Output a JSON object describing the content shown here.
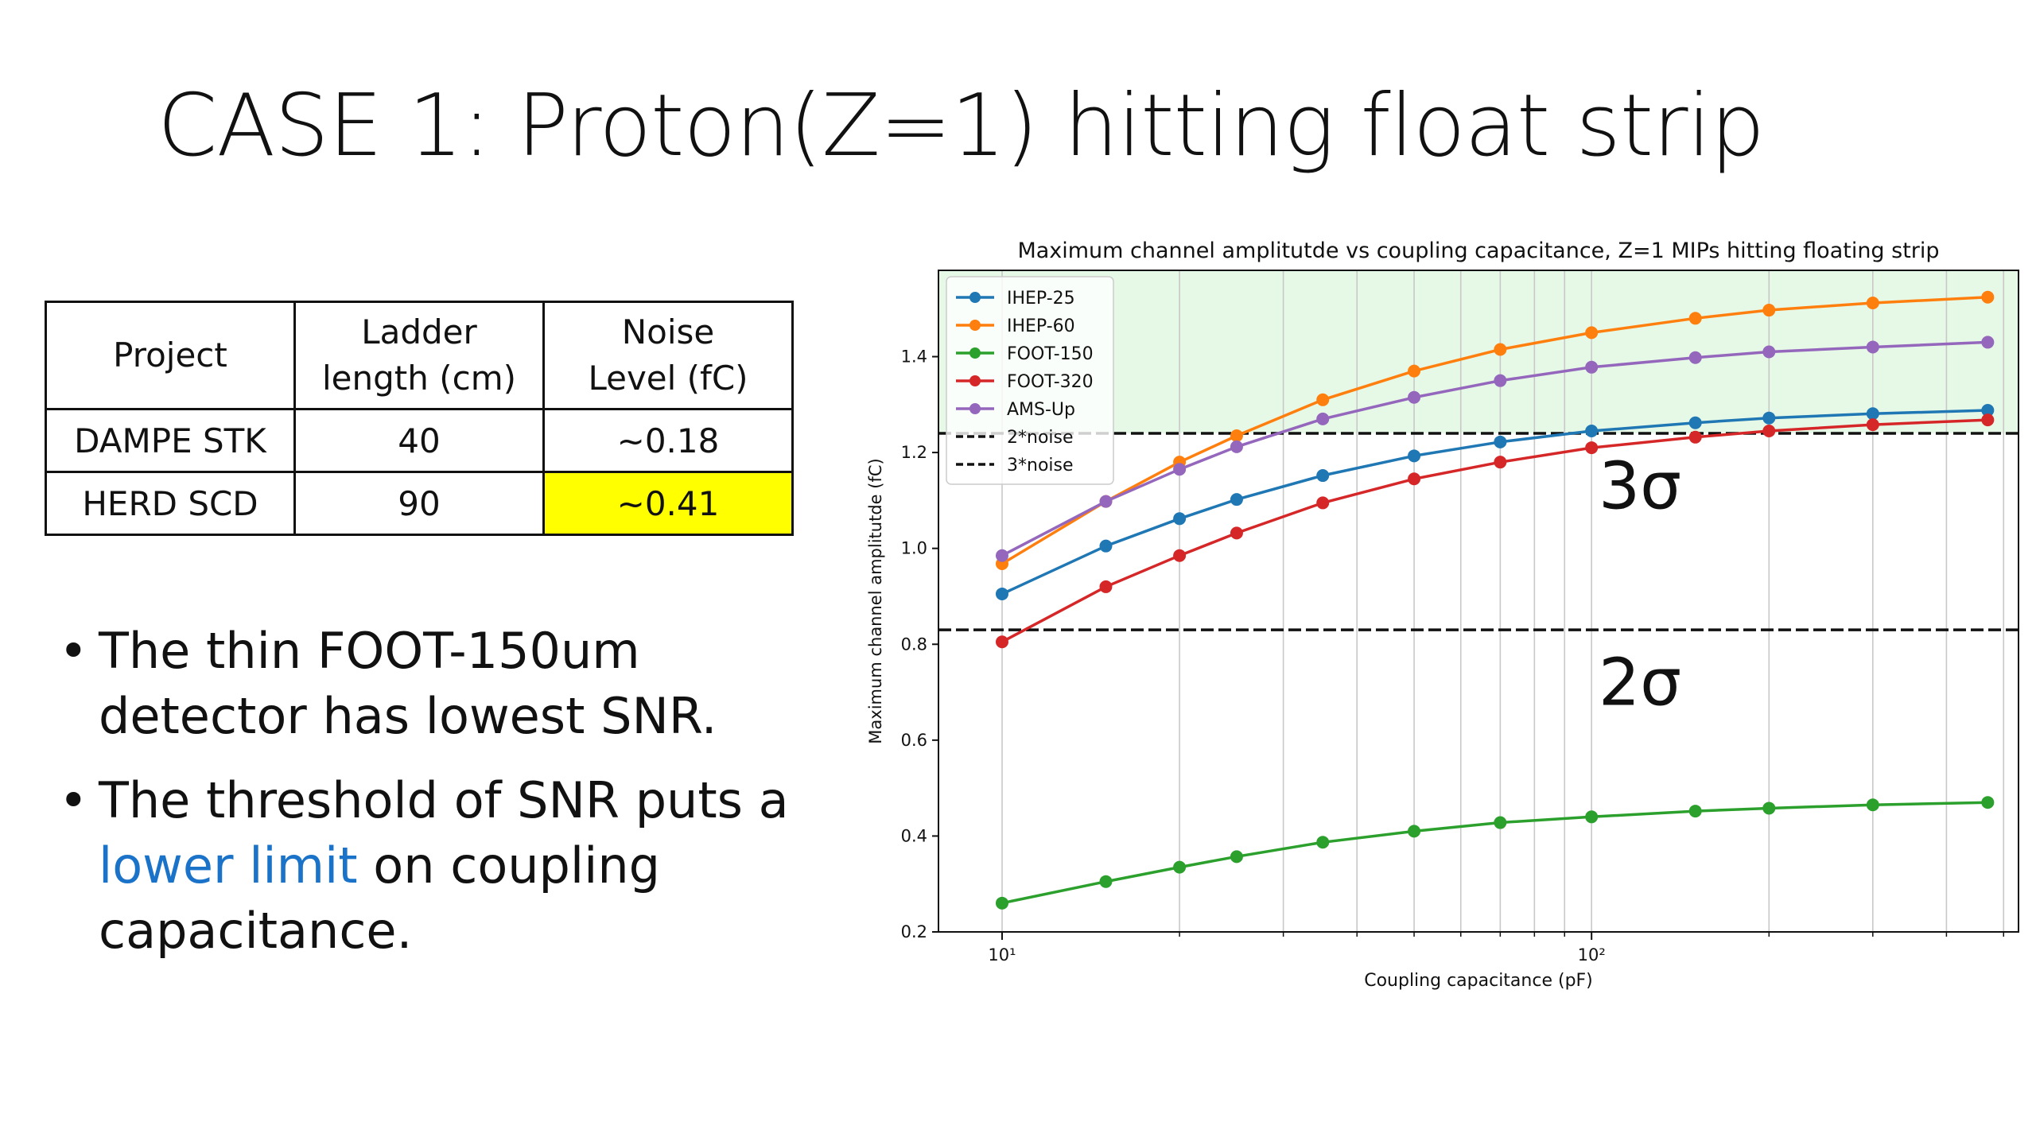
{
  "slide": {
    "title": "CASE 1: Proton(Z=1) hitting float strip"
  },
  "table": {
    "headers": [
      "Project",
      "Ladder\nlength (cm)",
      "Noise\nLevel (fC)"
    ],
    "rows": [
      [
        "DAMPE STK",
        "40",
        "~0.18"
      ],
      [
        "HERD SCD",
        "90",
        "~0.41"
      ]
    ],
    "highlight_color": "#ffff00"
  },
  "bullets": {
    "b1": "The thin FOOT-150um detector has lowest SNR.",
    "b2_pre": "The threshold of SNR puts a ",
    "b2_link": "lower limit",
    "b2_post": " on coupling capacitance.",
    "link_color": "#1a73c8"
  },
  "chart_data": {
    "type": "line",
    "title": "Maximum channel amplitutde vs coupling capacitance, Z=1 MIPs hitting floating strip",
    "xlabel": "Coupling capacitance (pF)",
    "ylabel": "Maximum channel amplitutde (fC)",
    "x_scale": "log",
    "x_ticks": [
      "10¹",
      "10²"
    ],
    "y_ticks": [
      "0.2",
      "0.4",
      "0.6",
      "0.8",
      "1.0",
      "1.2",
      "1.4"
    ],
    "ylim": [
      0.2,
      1.58
    ],
    "xlim": [
      7.8,
      530
    ],
    "grid": "vertical",
    "legend_position": "top-left",
    "x": [
      10,
      15,
      20,
      25,
      35,
      50,
      70,
      100,
      150,
      200,
      300,
      470
    ],
    "series": [
      {
        "name": "IHEP-25",
        "color": "#1f77b4",
        "values": [
          0.905,
          1.005,
          1.062,
          1.102,
          1.152,
          1.193,
          1.222,
          1.245,
          1.262,
          1.272,
          1.281,
          1.288
        ]
      },
      {
        "name": "IHEP-60",
        "color": "#ff7f0e",
        "values": [
          0.968,
          1.098,
          1.18,
          1.235,
          1.31,
          1.37,
          1.415,
          1.45,
          1.48,
          1.497,
          1.512,
          1.524
        ]
      },
      {
        "name": "FOOT-150",
        "color": "#2ca02c",
        "values": [
          0.26,
          0.305,
          0.335,
          0.357,
          0.387,
          0.41,
          0.428,
          0.44,
          0.452,
          0.458,
          0.465,
          0.47
        ]
      },
      {
        "name": "FOOT-320",
        "color": "#d62728",
        "values": [
          0.805,
          0.92,
          0.985,
          1.032,
          1.095,
          1.145,
          1.18,
          1.21,
          1.232,
          1.245,
          1.258,
          1.268
        ]
      },
      {
        "name": "AMS-Up",
        "color": "#9467bd",
        "values": [
          0.985,
          1.098,
          1.165,
          1.212,
          1.27,
          1.315,
          1.35,
          1.378,
          1.398,
          1.41,
          1.42,
          1.43
        ]
      }
    ],
    "threshold_lines": [
      {
        "name": "2*noise",
        "value": 0.83,
        "style": "dashed"
      },
      {
        "name": "3*noise",
        "value": 1.24,
        "style": "dashed"
      }
    ],
    "annotations": [
      "3σ",
      "2σ"
    ],
    "shaded_region_color": "#e6f8e6"
  }
}
